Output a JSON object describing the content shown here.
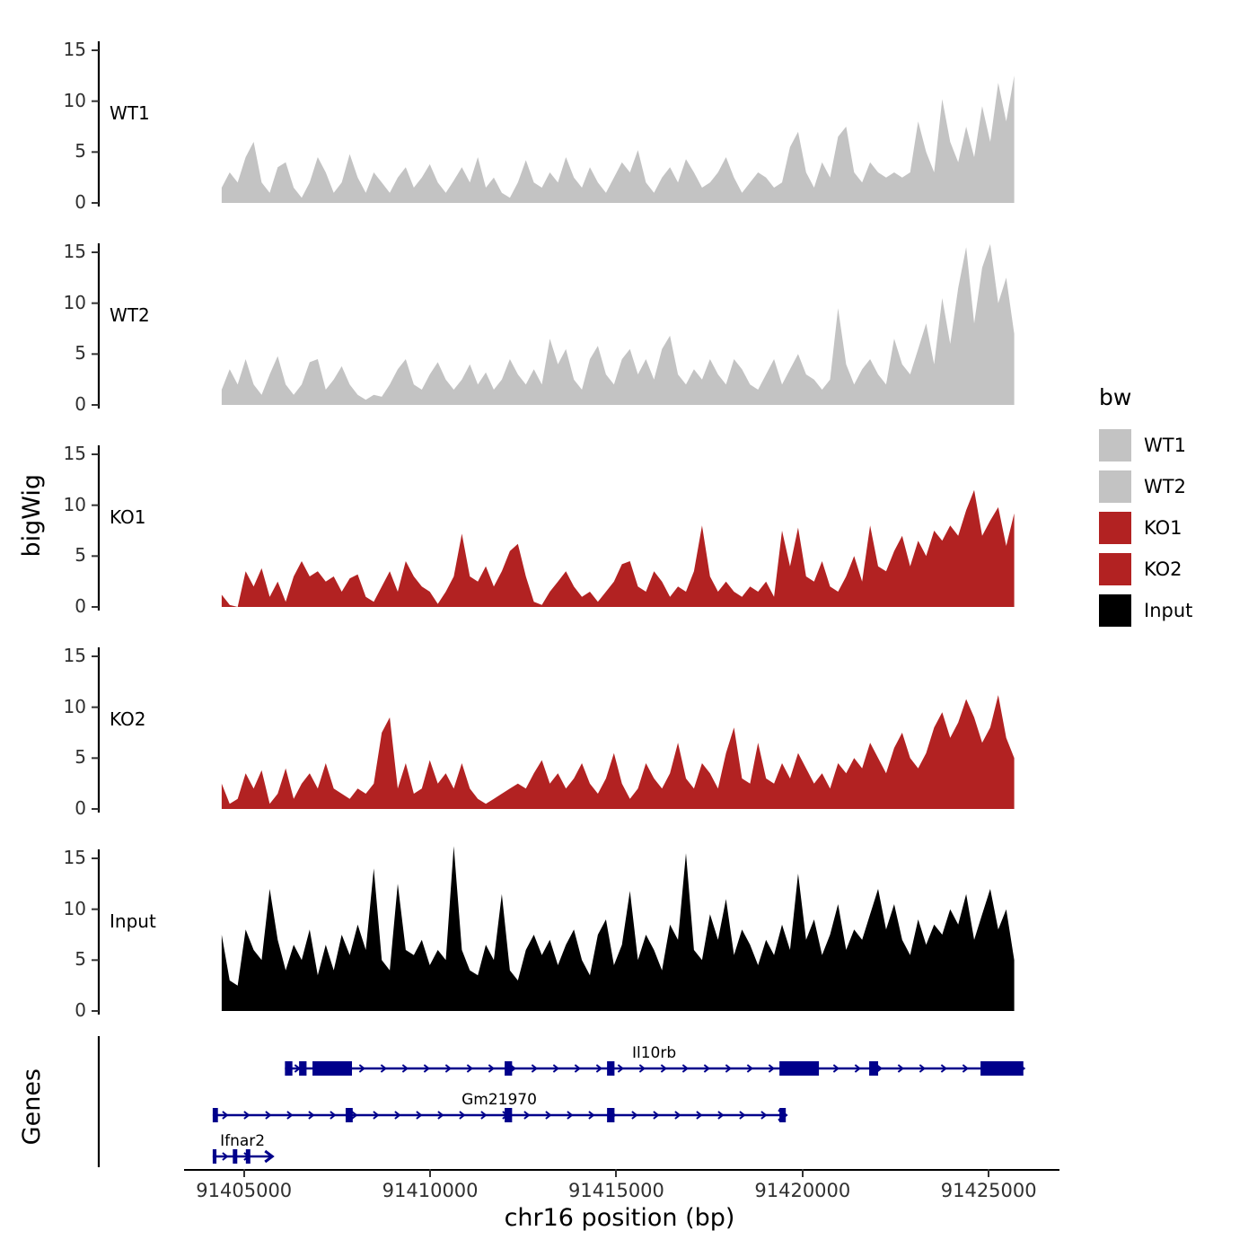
{
  "chart_data": {
    "type": "area",
    "xlabel": "chr16 position (bp)",
    "ylabel": "bigWig",
    "genes_label": "Genes",
    "x_start": 91404400,
    "x_step": 215,
    "x_domain": [
      91401100,
      91426900
    ],
    "ylim": [
      0,
      16.5
    ],
    "yticks": [
      0,
      5,
      10,
      15
    ],
    "xticks": [
      91405000,
      91410000,
      91415000,
      91420000,
      91425000
    ],
    "grid": false,
    "legend": {
      "title": "bw",
      "position": "right"
    },
    "tracks": [
      {
        "name": "WT1",
        "color": "#c3c3c3",
        "values": [
          1.5,
          3,
          2,
          4.5,
          6,
          2,
          1,
          3.5,
          4,
          1.5,
          0.5,
          2,
          4.5,
          3,
          1,
          2,
          4.8,
          2.5,
          1,
          3,
          2,
          1,
          2.5,
          3.5,
          1.5,
          2.5,
          3.8,
          2,
          1,
          2.2,
          3.5,
          2,
          4.5,
          1.5,
          2.5,
          1,
          0.5,
          2,
          4.2,
          2,
          1.5,
          3,
          2,
          4.5,
          2.5,
          1.5,
          3.5,
          2,
          1,
          2.5,
          4,
          3,
          5.2,
          2,
          1,
          2.5,
          3.5,
          2,
          4.3,
          3,
          1.5,
          2,
          3,
          4.5,
          2.5,
          1,
          2,
          3,
          2.5,
          1.5,
          2,
          5.5,
          7,
          3,
          1.5,
          4,
          2.5,
          6.5,
          7.5,
          3,
          2,
          4,
          3,
          2.5,
          3,
          2.5,
          3,
          8,
          5,
          3,
          10.2,
          6,
          4,
          7.5,
          4.5,
          9.5,
          6,
          11.8,
          8,
          12.5
        ]
      },
      {
        "name": "WT2",
        "color": "#c3c3c3",
        "values": [
          1.5,
          3.5,
          2,
          4.5,
          2,
          1,
          3,
          4.8,
          2,
          1,
          2,
          4.2,
          4.5,
          1.5,
          2.5,
          3.8,
          2,
          1,
          0.5,
          1,
          0.8,
          2,
          3.5,
          4.5,
          2,
          1.5,
          3,
          4.2,
          2.5,
          1.5,
          2.5,
          4,
          2,
          3.2,
          1.5,
          2.5,
          4.5,
          3,
          2,
          3.5,
          2,
          6.5,
          4,
          5.5,
          2.5,
          1.5,
          4.5,
          5.8,
          3,
          2,
          4.5,
          5.5,
          3,
          4.5,
          2.5,
          5.5,
          6.8,
          3,
          2,
          3.5,
          2.5,
          4.5,
          3,
          2,
          4.5,
          3.5,
          2,
          1.5,
          3,
          4.5,
          2,
          3.5,
          5,
          3,
          2.5,
          1.5,
          2.5,
          9.5,
          4,
          2,
          3.5,
          4.5,
          3,
          2,
          6.5,
          4,
          3,
          5.5,
          8,
          4,
          10.5,
          6,
          11.5,
          15.5,
          8,
          13.5,
          15.8,
          10,
          12.5,
          7
        ]
      },
      {
        "name": "KO1",
        "color": "#b22222",
        "values": [
          1.2,
          0.2,
          0,
          3.5,
          2,
          3.8,
          1,
          2.5,
          0.5,
          3,
          4.5,
          3,
          3.5,
          2.5,
          3,
          1.5,
          2.8,
          3.2,
          1,
          0.5,
          2,
          3.5,
          1.5,
          4.5,
          3,
          2,
          1.5,
          0.3,
          1.5,
          3,
          7.2,
          3,
          2.5,
          4,
          2,
          3.5,
          5.5,
          6.2,
          3,
          0.5,
          0.2,
          1.5,
          2.5,
          3.5,
          2,
          1,
          1.5,
          0.5,
          1.5,
          2.5,
          4.2,
          4.5,
          2,
          1.5,
          3.5,
          2.5,
          1,
          2,
          1.5,
          3.5,
          8,
          3,
          1.5,
          2.5,
          1.5,
          1,
          2,
          1.5,
          2.5,
          1,
          7.5,
          4,
          7.8,
          3,
          2.5,
          4.5,
          2,
          1.5,
          3,
          5,
          2.5,
          8,
          4,
          3.5,
          5.5,
          7,
          4,
          6.5,
          5,
          7.5,
          6.5,
          8,
          7,
          9.5,
          11.5,
          7,
          8.5,
          9.8,
          6,
          9.2
        ]
      },
      {
        "name": "KO2",
        "color": "#b22222",
        "values": [
          2.5,
          0.5,
          1,
          3.5,
          2,
          3.8,
          0.5,
          1.5,
          4,
          1,
          2.5,
          3.5,
          2,
          4.5,
          2,
          1.5,
          1,
          2,
          1.5,
          2.5,
          7.5,
          9,
          2,
          4.5,
          1.5,
          2,
          4.8,
          2.5,
          3.5,
          2,
          4.5,
          2,
          1,
          0.5,
          1,
          1.5,
          2,
          2.5,
          2,
          3.5,
          4.8,
          2.5,
          3.5,
          2,
          3,
          4.5,
          2.5,
          1.5,
          3,
          5.5,
          2.5,
          1,
          2,
          4.5,
          3,
          2,
          3.5,
          6.5,
          3,
          2,
          4.5,
          3.5,
          2,
          5.5,
          8,
          3,
          2.5,
          6.5,
          3,
          2.5,
          4.5,
          3,
          5.5,
          4,
          2.5,
          3.5,
          2,
          4.5,
          3.5,
          5,
          4,
          6.5,
          5,
          3.5,
          6,
          7.5,
          5,
          4,
          5.5,
          8,
          9.5,
          7,
          8.5,
          10.8,
          9,
          6.5,
          8,
          11.2,
          7,
          5
        ]
      },
      {
        "name": "Input",
        "color": "#000000",
        "values": [
          7.5,
          3,
          2.5,
          8,
          6,
          5,
          12,
          7,
          4,
          6.5,
          5,
          8,
          3.5,
          6.5,
          4,
          7.5,
          5.5,
          8.5,
          6,
          14,
          5,
          4,
          12.5,
          6,
          5.5,
          7,
          4.5,
          6,
          5,
          16.2,
          6,
          4,
          3.5,
          6.5,
          5,
          11.5,
          4,
          3,
          6,
          7.5,
          5.5,
          7,
          4.5,
          6.5,
          8,
          5,
          3.5,
          7.5,
          9,
          4.5,
          6.5,
          11.8,
          5,
          7.5,
          6,
          4,
          8.5,
          7,
          15.5,
          6,
          5,
          9.5,
          7,
          11,
          5.5,
          8,
          6.5,
          4.5,
          7,
          5.5,
          8.5,
          6,
          13.5,
          7,
          9,
          5.5,
          7.5,
          10.5,
          6,
          8,
          7,
          9.5,
          12,
          8,
          10.5,
          7,
          5.5,
          9,
          6.5,
          8.5,
          7.5,
          10,
          8.5,
          11.5,
          7,
          9.5,
          12,
          8,
          10,
          5
        ]
      }
    ],
    "genes": {
      "color": "#00008b",
      "items": [
        {
          "name": "Il10rb",
          "start": 91406100,
          "end": 91425930,
          "strand": "+",
          "exons": [
            [
              91406100,
              91406300
            ],
            [
              91406480,
              91406680
            ],
            [
              91406840,
              91407900
            ],
            [
              91412000,
              91412200
            ],
            [
              91414750,
              91414950
            ],
            [
              91419380,
              91420440
            ],
            [
              91421790,
              91422030
            ],
            [
              91424780,
              91425930
            ]
          ]
        },
        {
          "name": "Gm21970",
          "start": 91404160,
          "end": 91419550,
          "strand": "+",
          "exons": [
            [
              91404160,
              91404300
            ],
            [
              91407730,
              91407920
            ],
            [
              91412000,
              91412200
            ],
            [
              91414750,
              91414950
            ],
            [
              91419380,
              91419550
            ]
          ]
        },
        {
          "name": "Ifnar2",
          "start": 91404160,
          "end": 91405760,
          "strand": "+",
          "exons": [
            [
              91404160,
              91404260
            ],
            [
              91404700,
              91404820
            ],
            [
              91405050,
              91405170
            ]
          ]
        }
      ]
    }
  }
}
